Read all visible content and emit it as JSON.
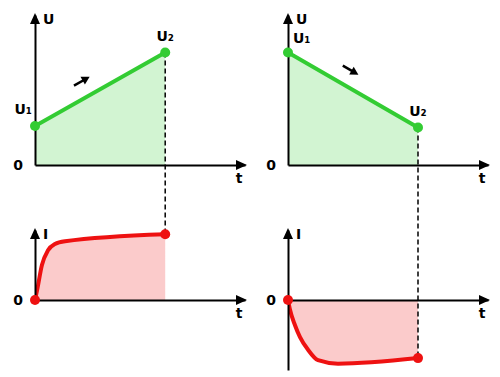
{
  "chart_data": [
    {
      "type": "area",
      "y_label": "U",
      "x_label": "t",
      "x": [
        0,
        6.2
      ],
      "values": [
        2.6,
        7.5
      ],
      "point_labels": [
        "U₁",
        "U₂"
      ],
      "color": "#33cc33",
      "xlim": [
        0,
        10
      ],
      "ylim": [
        0,
        10
      ],
      "yticks": [
        0
      ],
      "tick_labels": "y"
    },
    {
      "type": "area",
      "y_label": "I",
      "x_label": "t",
      "x": [
        0,
        0.1,
        0.33,
        0.62,
        0.95,
        1.43,
        6.2
      ],
      "values": [
        0,
        1.4,
        5,
        7.1,
        8,
        8.4,
        9.4
      ],
      "color": "#ee1111",
      "xlim": [
        0,
        10
      ],
      "ylim": [
        0,
        10
      ],
      "yticks": [
        0
      ],
      "tick_labels": "y"
    },
    {
      "type": "area",
      "y_label": "U",
      "x_label": "t",
      "x": [
        0,
        6.5
      ],
      "values": [
        7.5,
        2.5
      ],
      "point_labels": [
        "U₁",
        "U₂"
      ],
      "color": "#33cc33",
      "xlim": [
        0,
        10
      ],
      "ylim": [
        0,
        10
      ],
      "yticks": [
        0
      ],
      "tick_labels": "y"
    },
    {
      "type": "area",
      "y_label": "I",
      "x_label": "t",
      "x": [
        0,
        0.1,
        0.35,
        0.6,
        1.0,
        1.5,
        2.5,
        6.5
      ],
      "values": [
        0,
        -1.4,
        -3.6,
        -5.3,
        -7.1,
        -8.6,
        -9.1,
        -8.3
      ],
      "color": "#ee1111",
      "xlim": [
        0,
        10
      ],
      "ylim": [
        -10,
        10
      ],
      "yticks": [
        0
      ],
      "tick_labels": "y"
    }
  ]
}
